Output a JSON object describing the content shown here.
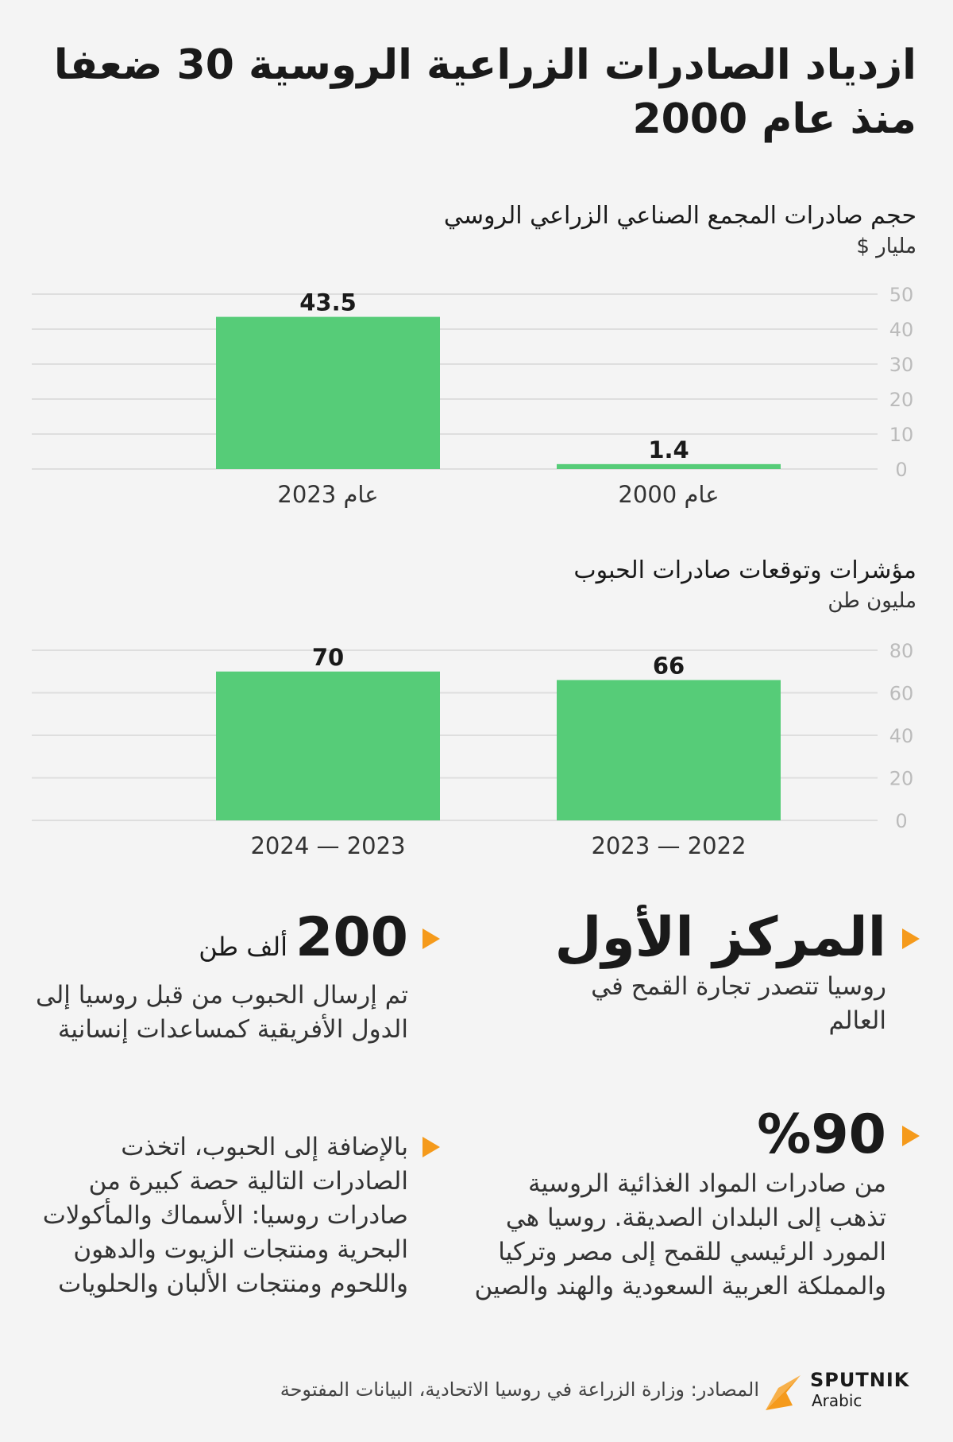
{
  "title": "ازدياد الصادرات الزراعية الروسية 30 ضعفا منذ عام 2000",
  "chart_data": [
    {
      "type": "bar",
      "title": "حجم صادرات المجمع الصناعي الزراعي الروسي",
      "ylabel": "مليار $",
      "categories": [
        "عام 2000",
        "عام 2023"
      ],
      "values": [
        1.4,
        43.5
      ],
      "value_labels": [
        "1.4",
        "43.5"
      ],
      "ylim": [
        0,
        50
      ],
      "yticks": [
        "0",
        "10",
        "20",
        "30",
        "40",
        "50"
      ],
      "grid": true,
      "bar_color": "#56cc78"
    },
    {
      "type": "bar",
      "title": "مؤشرات وتوقعات صادرات الحبوب",
      "ylabel": "مليون طن",
      "categories": [
        "2022 — 2023",
        "2023 — 2024"
      ],
      "values": [
        66,
        70
      ],
      "value_labels": [
        "66",
        "70"
      ],
      "ylim": [
        0,
        80
      ],
      "yticks": [
        "0",
        "20",
        "40",
        "60",
        "80"
      ],
      "grid": true,
      "bar_color": "#56cc78"
    }
  ],
  "stats": {
    "first_place": {
      "headline": "المركز الأول",
      "text": "روسيا تتصدر تجارة القمح في العالم"
    },
    "aid": {
      "number": "200",
      "unit": "ألف طن",
      "text": "تم إرسال الحبوب من قبل روسيا إلى الدول الأفريقية كمساعدات إنسانية"
    },
    "share": {
      "number": "%90",
      "text": "من صادرات المواد الغذائية الروسية تذهب إلى البلدان الصديقة. روسيا هي المورد الرئيسي للقمح إلى مصر وتركيا والمملكة العربية السعودية والهند والصين"
    },
    "other": {
      "text": "بالإضافة إلى الحبوب، اتخذت الصادرات التالية حصة كبيرة من صادرات روسيا: الأسماك والمأكولات البحرية ومنتجات الزيوت والدهون واللحوم ومنتجات الألبان والحلويات"
    }
  },
  "footer": {
    "source": "المصادر: وزارة الزراعة في روسيا الاتحادية، البيانات المفتوحة",
    "logo_name": "SPUTNIK",
    "logo_sub": "Arabic",
    "accent": "#f59a1b"
  }
}
